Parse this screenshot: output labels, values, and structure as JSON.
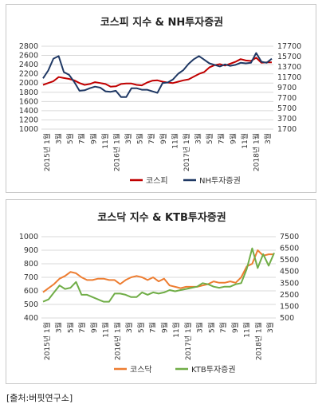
{
  "source": "[출처:버핏연구소]",
  "chart_data": [
    {
      "type": "line",
      "title": "코스피 지수 & NH투자증권",
      "x_tick_labels": [
        "2015년 1월",
        "3월",
        "5월",
        "7월",
        "9월",
        "11월",
        "2016년 1월",
        "3월",
        "5월",
        "7월",
        "9월",
        "11월",
        "2017년 1월",
        "3월",
        "5월",
        "7월",
        "9월",
        "11월",
        "2018년 1월",
        "3월"
      ],
      "y_left": {
        "min": 1000,
        "max": 2800,
        "step": 200
      },
      "y_right": {
        "min": 1700,
        "max": 17700,
        "step": 2000
      },
      "series": [
        {
          "name": "코스피",
          "axis": "left",
          "color": "#c00000",
          "values": [
            1960,
            2000,
            2040,
            2130,
            2110,
            2090,
            2060,
            2000,
            1960,
            1980,
            2020,
            2000,
            1980,
            1920,
            1930,
            1980,
            1990,
            1990,
            1960,
            1950,
            2010,
            2050,
            2060,
            2030,
            2010,
            2000,
            2030,
            2060,
            2080,
            2140,
            2200,
            2240,
            2340,
            2390,
            2410,
            2380,
            2420,
            2460,
            2520,
            2490,
            2480,
            2550,
            2440,
            2450,
            2450
          ]
        },
        {
          "name": "NH투자증권",
          "axis": "right",
          "color": "#1f3864",
          "values": [
            11500,
            13000,
            15300,
            15800,
            12700,
            12200,
            10800,
            9100,
            9200,
            9600,
            9900,
            9700,
            9000,
            8900,
            9100,
            7900,
            7900,
            9600,
            9600,
            9300,
            9300,
            9000,
            8700,
            10600,
            10700,
            11300,
            12400,
            13100,
            14300,
            15200,
            15800,
            15100,
            14400,
            14100,
            13800,
            14200,
            13900,
            14100,
            14500,
            14400,
            14500,
            16400,
            14700,
            14500,
            15300
          ]
        }
      ]
    },
    {
      "type": "line",
      "title": "코스닥 지수 & KTB투자증권",
      "x_tick_labels": [
        "2015년 1월",
        "3월",
        "5월",
        "7월",
        "9월",
        "11월",
        "2016년 1월",
        "3월",
        "5월",
        "7월",
        "9월",
        "11월",
        "2017년 1월",
        "3월",
        "5월",
        "7월",
        "9월",
        "11월",
        "2018년 1월",
        "3월"
      ],
      "y_left": {
        "min": 400,
        "max": 1000,
        "step": 100
      },
      "y_right": {
        "min": 500,
        "max": 7500,
        "step": 1000
      },
      "series": [
        {
          "name": "코스닥",
          "axis": "left",
          "color": "#ed7d31",
          "values": [
            590,
            620,
            650,
            690,
            710,
            740,
            730,
            700,
            680,
            680,
            690,
            690,
            680,
            680,
            650,
            680,
            700,
            710,
            700,
            680,
            700,
            670,
            690,
            640,
            630,
            620,
            630,
            630,
            630,
            640,
            650,
            670,
            660,
            660,
            670,
            660,
            700,
            780,
            800,
            900,
            860,
            870,
            870
          ]
        },
        {
          "name": "KTB투자증권",
          "axis": "right",
          "color": "#70ad47",
          "values": [
            1900,
            2100,
            2700,
            3300,
            3000,
            3100,
            3600,
            2500,
            2500,
            2300,
            2100,
            1900,
            1900,
            2600,
            2600,
            2500,
            2300,
            2300,
            2700,
            2500,
            2700,
            2600,
            2700,
            2900,
            2800,
            2900,
            3000,
            3100,
            3200,
            3500,
            3400,
            3200,
            3100,
            3200,
            3200,
            3400,
            3500,
            4700,
            6500,
            4800,
            6000,
            5000,
            6100
          ]
        }
      ]
    }
  ]
}
